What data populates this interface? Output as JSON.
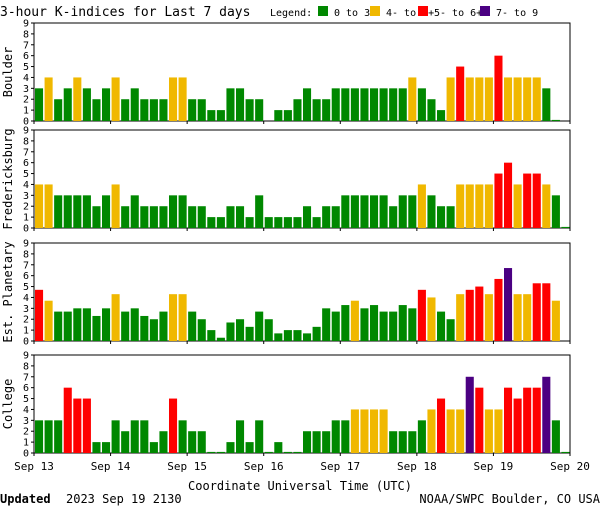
{
  "header": {
    "title": "3-hour K-indices for Last 7 days",
    "legend_label": "Legend:",
    "legend": [
      {
        "label": "0 to 3+",
        "color": "#008800"
      },
      {
        "label": "4- to 4+",
        "color": "#f0b800"
      },
      {
        "label": "5- to 6+",
        "color": "#ff0000"
      },
      {
        "label": "7- to 9",
        "color": "#4b0082"
      }
    ]
  },
  "footer": {
    "updated_label": "Updated",
    "updated_time": "2023 Sep 19 2130",
    "credit": "NOAA/SWPC Boulder, CO USA"
  },
  "chart_data": [
    {
      "type": "bar",
      "ylabel": "Boulder",
      "ylim": [
        0,
        9
      ],
      "yticks": [
        "0",
        "1",
        "2",
        "3",
        "4",
        "5",
        "6",
        "7",
        "8",
        "9"
      ],
      "values": [
        3,
        4,
        2,
        3,
        4,
        3,
        2,
        3,
        4,
        2,
        3,
        2,
        2,
        2,
        4,
        4,
        2,
        2,
        1,
        1,
        3,
        3,
        2,
        2,
        0,
        1,
        1,
        2,
        3,
        2,
        2,
        3,
        3,
        3,
        3,
        3,
        3,
        3,
        3,
        4,
        3,
        2,
        1,
        4,
        5,
        4,
        4,
        4,
        6,
        4,
        4,
        4,
        4,
        3,
        0.1
      ]
    },
    {
      "type": "bar",
      "ylabel": "Fredericksburg",
      "ylim": [
        0,
        9
      ],
      "yticks": [
        "0",
        "1",
        "2",
        "3",
        "4",
        "5",
        "6",
        "7",
        "8",
        "9"
      ],
      "values": [
        4,
        4,
        3,
        3,
        3,
        3,
        2,
        3,
        4,
        2,
        3,
        2,
        2,
        2,
        3,
        3,
        2,
        2,
        1,
        1,
        2,
        2,
        1,
        3,
        1,
        1,
        1,
        1,
        2,
        1,
        2,
        2,
        3,
        3,
        3,
        3,
        3,
        2,
        3,
        3,
        4,
        3,
        2,
        2,
        4,
        4,
        4,
        4,
        5,
        6,
        4,
        5,
        5,
        4,
        3,
        0.1
      ]
    },
    {
      "type": "bar",
      "ylabel": "Est. Planetary",
      "ylim": [
        0,
        9
      ],
      "yticks": [
        "0",
        "1",
        "2",
        "3",
        "4",
        "5",
        "6",
        "7",
        "8",
        "9"
      ],
      "values": [
        4.7,
        3.7,
        2.7,
        2.7,
        3,
        3,
        2.3,
        3,
        4.3,
        2.7,
        3,
        2.3,
        2,
        2.7,
        4.3,
        4.3,
        2.7,
        2,
        1,
        0.3,
        1.7,
        2,
        1.3,
        2.7,
        2,
        0.7,
        1,
        1,
        0.7,
        1.3,
        3,
        2.7,
        3.3,
        3.7,
        3,
        3.3,
        2.7,
        2.7,
        3.3,
        3,
        4.7,
        4,
        2.7,
        2,
        4.3,
        4.7,
        5,
        4.3,
        5.7,
        6.7,
        4.3,
        4.3,
        5.3,
        5.3,
        3.7
      ]
    },
    {
      "type": "bar",
      "ylabel": "College",
      "ylim": [
        0,
        9
      ],
      "yticks": [
        "0",
        "1",
        "2",
        "3",
        "4",
        "5",
        "6",
        "7",
        "8",
        "9"
      ],
      "values": [
        3,
        3,
        3,
        6,
        5,
        5,
        1,
        1,
        3,
        2,
        3,
        3,
        1,
        2,
        5,
        3,
        2,
        2,
        0.1,
        0.1,
        1,
        3,
        1,
        3,
        0.1,
        1,
        0.1,
        0.1,
        2,
        2,
        2,
        3,
        3,
        4,
        4,
        4,
        4,
        2,
        2,
        2,
        3,
        4,
        5,
        4,
        4,
        7,
        6,
        4,
        4,
        6,
        5,
        6,
        6,
        7,
        3,
        0.1
      ]
    }
  ],
  "x_axis": {
    "label": "Coordinate Universal Time (UTC)",
    "ticks": [
      "Sep 13",
      "Sep 14",
      "Sep 15",
      "Sep 16",
      "Sep 17",
      "Sep 18",
      "Sep 19",
      "Sep 20"
    ]
  }
}
